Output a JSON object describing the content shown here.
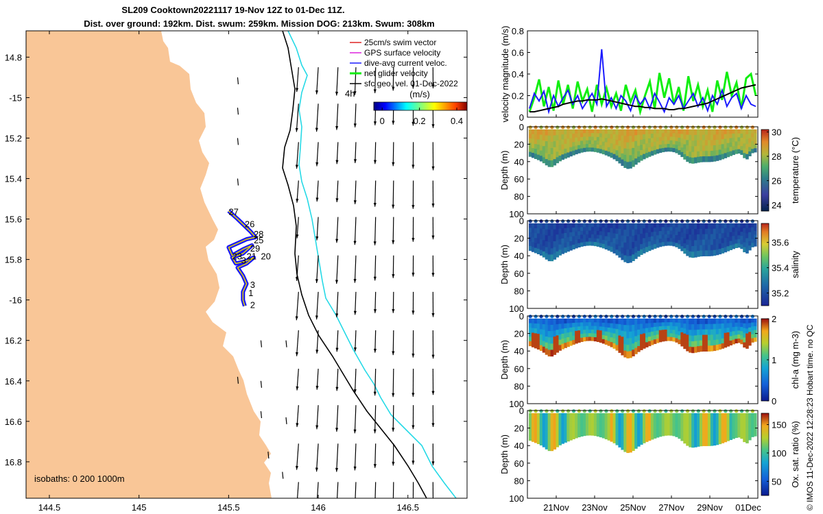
{
  "colors": {
    "land": "#f9c697",
    "iso200": "#000000",
    "iso1000": "#24d9e6",
    "arrow": "#000000",
    "track": "#1a1aff",
    "track_inner": "#e6d400",
    "glider_green": "#11ee11",
    "sfc_black": "#000000",
    "swim_red": "#dd2222",
    "gps_magenta": "#dd22dd"
  },
  "chart_data": [
    {
      "type": "map",
      "title_line1": "SL209 Cooktown20221117 19-Nov 12Z to 01-Dec 11Z.",
      "title_line2": "Dist. over ground: 192km. Dist. swum: 259km. Mission DOG: 213km. Swum: 308km",
      "xlim": [
        144.37,
        146.83
      ],
      "ylim": [
        -16.98,
        -14.67
      ],
      "xticks": [
        144.5,
        145,
        145.5,
        146,
        146.5
      ],
      "xtick_labels": [
        "144.5",
        "145",
        "145.5",
        "146",
        "146.5"
      ],
      "yticks": [
        -14.8,
        -15,
        -15.2,
        -15.4,
        -15.6,
        -15.8,
        -16,
        -16.2,
        -16.4,
        -16.6,
        -16.8
      ],
      "ytick_labels": [
        "14.8",
        "-15",
        "15.2",
        "15.4",
        "15.6",
        "15.8",
        "-16",
        "16.2",
        "16.4",
        "16.6",
        "16.8"
      ],
      "legend": [
        "25cm/s swim vector",
        "GPS surface velocity",
        "dive-avg current veloc.",
        "net glider velocity",
        "sfc geo. vel. 01-Dec-2022"
      ],
      "scale_label": "4h",
      "colorbar_label": "(m/s)",
      "colorbar_ticks": [
        0,
        0.2,
        0.4
      ],
      "colorbar_tick_labels": [
        "0",
        "0.2",
        "0.4"
      ],
      "isobaths_label": "isobaths: 0   200  1000m",
      "day_labels": [
        {
          "text": "27",
          "lon": 145.5,
          "lat": -15.58
        },
        {
          "text": "26",
          "lon": 145.59,
          "lat": -15.64
        },
        {
          "text": "28",
          "lon": 145.64,
          "lat": -15.69
        },
        {
          "text": "25",
          "lon": 145.64,
          "lat": -15.72
        },
        {
          "text": "29",
          "lon": 145.62,
          "lat": -15.76
        },
        {
          "text": "23",
          "lon": 145.52,
          "lat": -15.8
        },
        {
          "text": "21",
          "lon": 145.6,
          "lat": -15.8
        },
        {
          "text": "20",
          "lon": 145.68,
          "lat": -15.8
        },
        {
          "text": "3",
          "lon": 145.57,
          "lat": -15.82
        },
        {
          "text": "3",
          "lon": 145.62,
          "lat": -15.94
        },
        {
          "text": "1",
          "lon": 145.61,
          "lat": -15.98
        },
        {
          "text": "2",
          "lon": 145.62,
          "lat": -16.04
        }
      ],
      "arrow_grid_lons": [
        145.89,
        146.0,
        146.11,
        146.21,
        146.32,
        146.42,
        146.53,
        146.64
      ],
      "arrow_grid_lats": [
        -14.85,
        -15.03,
        -15.22,
        -15.41,
        -15.59,
        -15.78,
        -15.96,
        -16.15,
        -16.34,
        -16.52,
        -16.71,
        -16.9
      ],
      "arrow_typical_uv_mps": [
        -0.01,
        -0.3
      ]
    },
    {
      "type": "line",
      "ylabel": "velocity magnitude (m/s)",
      "ylim": [
        0,
        0.8
      ],
      "yticks": [
        0,
        0.2,
        0.4,
        0.6,
        0.8
      ],
      "ytick_labels": [
        "0",
        "0.2",
        "0.4",
        "0.6",
        "0.8"
      ],
      "xlim_days": [
        19.5,
        31.5
      ],
      "series": [
        {
          "name": "net glider velocity",
          "color": "#11ee11",
          "values": [
            0.05,
            0.18,
            0.35,
            0.1,
            0.28,
            0.06,
            0.34,
            0.12,
            0.3,
            0.08,
            0.33,
            0.15,
            0.26,
            0.05,
            0.3,
            0.12,
            0.27,
            0.1,
            0.22,
            0.06,
            0.3,
            0.14,
            0.25,
            0.05,
            0.2,
            0.33,
            0.08,
            0.41,
            0.18,
            0.36,
            0.12,
            0.28,
            0.06,
            0.38,
            0.15,
            0.3,
            0.1,
            0.25,
            0.05,
            0.34,
            0.16,
            0.42,
            0.2,
            0.32,
            0.08,
            0.36,
            0.4,
            0.2
          ]
        },
        {
          "name": "dive-avg current veloc.",
          "color": "#1a1aff",
          "values": [
            0.08,
            0.22,
            0.15,
            0.24,
            0.05,
            0.2,
            0.1,
            0.18,
            0.25,
            0.12,
            0.2,
            0.08,
            0.15,
            0.22,
            0.12,
            0.63,
            0.1,
            0.18,
            0.08,
            0.2,
            0.15,
            0.06,
            0.2,
            0.12,
            0.18,
            0.08,
            0.22,
            0.14,
            0.05,
            0.18,
            0.12,
            0.2,
            0.08,
            0.15,
            0.22,
            0.1,
            0.18,
            0.06,
            0.2,
            0.12,
            0.25,
            0.1,
            0.18,
            0.22,
            0.08,
            0.2,
            0.12,
            0.1
          ]
        },
        {
          "name": "sfc geo. vel.",
          "color": "#000000",
          "values": [
            0.05,
            0.05,
            0.06,
            0.07,
            0.08,
            0.09,
            0.1,
            0.12,
            0.13,
            0.14,
            0.15,
            0.15,
            0.16,
            0.16,
            0.16,
            0.17,
            0.16,
            0.15,
            0.14,
            0.13,
            0.12,
            0.11,
            0.1,
            0.1,
            0.09,
            0.09,
            0.08,
            0.08,
            0.08,
            0.07,
            0.07,
            0.08,
            0.08,
            0.09,
            0.1,
            0.11,
            0.12,
            0.13,
            0.15,
            0.17,
            0.19,
            0.21,
            0.23,
            0.25,
            0.27,
            0.28,
            0.29,
            0.3
          ]
        }
      ]
    },
    {
      "type": "heatmap",
      "ylabel": "Depth (m)",
      "clabel": "temperature (°C)",
      "ylim": [
        100,
        0
      ],
      "yticks": [
        0,
        20,
        40,
        60,
        80,
        100
      ],
      "ytick_labels": [
        "0",
        "20",
        "40",
        "60",
        "80",
        "100"
      ],
      "crange": [
        23.5,
        30.2
      ],
      "cticks": [
        24,
        26,
        28,
        30
      ],
      "ctick_labels": [
        "24",
        "26",
        "28",
        "30"
      ],
      "colormap": "thermal",
      "surface_value": 28.6,
      "deep_value": 27.6,
      "bottom_value": 26.4
    },
    {
      "type": "heatmap",
      "ylabel": "Depth (m)",
      "clabel": "salinity",
      "ylim": [
        100,
        0
      ],
      "yticks": [
        0,
        20,
        40,
        60,
        80,
        100
      ],
      "ytick_labels": [
        "0",
        "20",
        "40",
        "60",
        "80",
        "100"
      ],
      "crange": [
        35.1,
        35.75
      ],
      "cticks": [
        35.2,
        35.4,
        35.6
      ],
      "ctick_labels": [
        "35.2",
        "35.4",
        "35.6"
      ],
      "colormap": "haline",
      "surface_value": 35.17,
      "deep_value": 35.22,
      "bottom_value": 35.28
    },
    {
      "type": "heatmap",
      "ylabel": "Depth (m)",
      "clabel": "chl-a (mg m-3)",
      "ylim": [
        100,
        0
      ],
      "yticks": [
        0,
        20,
        40,
        60,
        80,
        100
      ],
      "ytick_labels": [
        "0",
        "20",
        "40",
        "60",
        "80",
        "100"
      ],
      "crange": [
        0,
        2
      ],
      "cticks": [
        0,
        1,
        2
      ],
      "ctick_labels": [
        "0",
        "1",
        "2"
      ],
      "colormap": "parula",
      "surface_value": 0.4,
      "deep_value": 1.3,
      "bottom_value": 1.8
    },
    {
      "type": "heatmap",
      "ylabel": "Depth (m)",
      "clabel": "Ox. sat. ratio (%)",
      "ylim": [
        100,
        0
      ],
      "yticks": [
        0,
        20,
        40,
        60,
        80,
        100
      ],
      "ytick_labels": [
        "0",
        "20",
        "40",
        "60",
        "80",
        "100"
      ],
      "crange": [
        25,
        170
      ],
      "cticks": [
        50,
        100,
        150
      ],
      "ctick_labels": [
        "50",
        "100",
        "150"
      ],
      "colormap": "parula",
      "surface_value": 115,
      "deep_value": 105,
      "bottom_value": 100
    }
  ],
  "time_axis": {
    "tick_days": [
      21,
      23,
      25,
      27,
      29,
      31
    ],
    "tick_labels": [
      "21Nov",
      "23Nov",
      "25Nov",
      "27Nov",
      "29Nov",
      "01Dec"
    ]
  },
  "credit": "© IMOS 11-Dec-2022 12:28:23 Hobart time. no QC"
}
